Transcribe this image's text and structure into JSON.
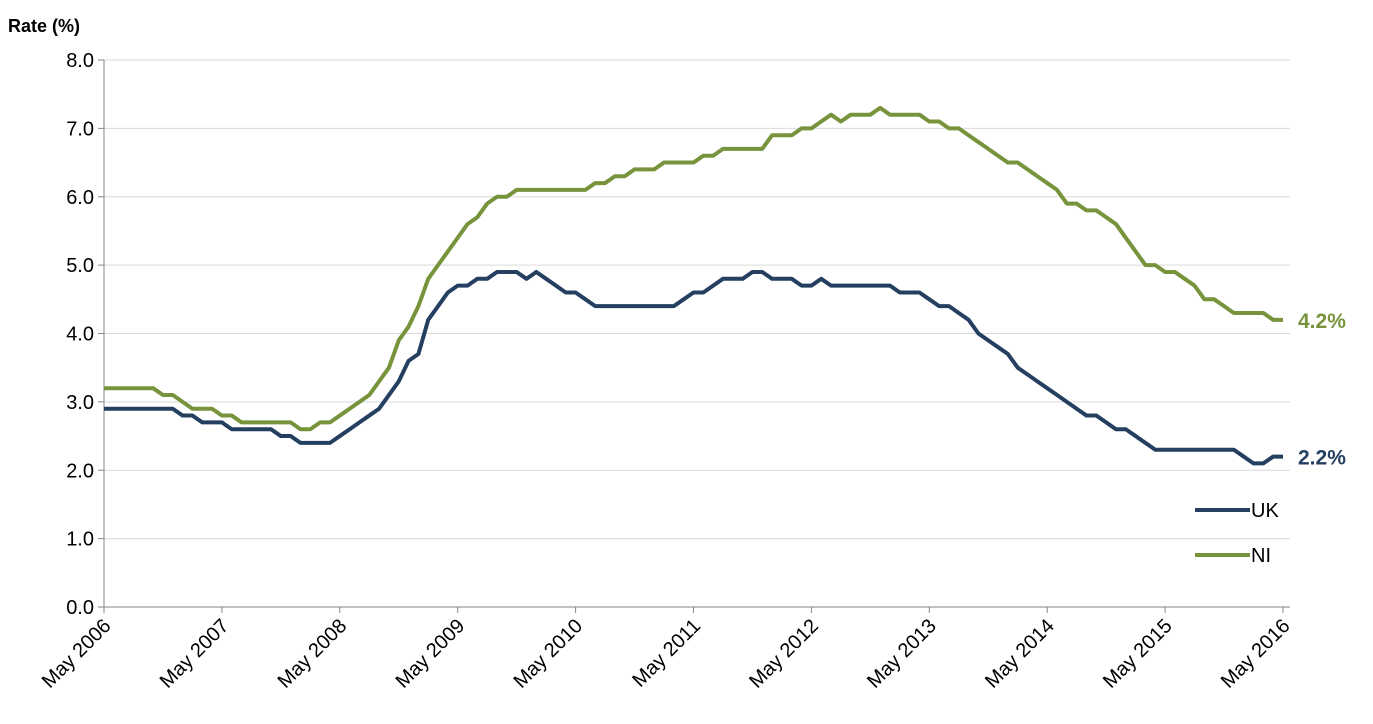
{
  "chart_data": {
    "type": "line",
    "y_label": "Rate (%)",
    "categories": [
      "May 2006",
      null,
      null,
      null,
      null,
      null,
      null,
      null,
      null,
      null,
      null,
      null,
      "May 2007",
      null,
      null,
      null,
      null,
      null,
      null,
      null,
      null,
      null,
      null,
      null,
      "May 2008",
      null,
      null,
      null,
      null,
      null,
      null,
      null,
      null,
      null,
      null,
      null,
      "May 2009",
      null,
      null,
      null,
      null,
      null,
      null,
      null,
      null,
      null,
      null,
      null,
      "May 2010",
      null,
      null,
      null,
      null,
      null,
      null,
      null,
      null,
      null,
      null,
      null,
      "May 2011",
      null,
      null,
      null,
      null,
      null,
      null,
      null,
      null,
      null,
      null,
      null,
      "May 2012",
      null,
      null,
      null,
      null,
      null,
      null,
      null,
      null,
      null,
      null,
      null,
      "May 2013",
      null,
      null,
      null,
      null,
      null,
      null,
      null,
      null,
      null,
      null,
      null,
      "May 2014",
      null,
      null,
      null,
      null,
      null,
      null,
      null,
      null,
      null,
      null,
      null,
      "May 2015",
      null,
      null,
      null,
      null,
      null,
      null,
      null,
      null,
      null,
      null,
      null,
      "May 2016"
    ],
    "series": [
      {
        "name": "UK",
        "color": "#243f60",
        "values": [
          2.9,
          2.9,
          2.9,
          2.9,
          2.9,
          2.9,
          2.9,
          2.9,
          2.8,
          2.8,
          2.7,
          2.7,
          2.7,
          2.6,
          2.6,
          2.6,
          2.6,
          2.6,
          2.5,
          2.5,
          2.4,
          2.4,
          2.4,
          2.4,
          2.5,
          2.6,
          2.7,
          2.8,
          2.9,
          3.1,
          3.3,
          3.6,
          3.7,
          4.2,
          4.4,
          4.6,
          4.7,
          4.7,
          4.8,
          4.8,
          4.9,
          4.9,
          4.9,
          4.8,
          4.9,
          4.8,
          4.7,
          4.6,
          4.6,
          4.5,
          4.4,
          4.4,
          4.4,
          4.4,
          4.4,
          4.4,
          4.4,
          4.4,
          4.4,
          4.5,
          4.6,
          4.6,
          4.7,
          4.8,
          4.8,
          4.8,
          4.9,
          4.9,
          4.8,
          4.8,
          4.8,
          4.7,
          4.7,
          4.8,
          4.7,
          4.7,
          4.7,
          4.7,
          4.7,
          4.7,
          4.7,
          4.6,
          4.6,
          4.6,
          4.5,
          4.4,
          4.4,
          4.3,
          4.2,
          4.0,
          3.9,
          3.8,
          3.7,
          3.5,
          3.4,
          3.3,
          3.2,
          3.1,
          3.0,
          2.9,
          2.8,
          2.8,
          2.7,
          2.6,
          2.6,
          2.5,
          2.4,
          2.3,
          2.3,
          2.3,
          2.3,
          2.3,
          2.3,
          2.3,
          2.3,
          2.3,
          2.2,
          2.1,
          2.1,
          2.2,
          2.2
        ],
        "value_labels": [
          null,
          null,
          null,
          null,
          null,
          null,
          null,
          null,
          null,
          null,
          null,
          null,
          null,
          null,
          null,
          null,
          null,
          null,
          null,
          null,
          null,
          null,
          null,
          null,
          null,
          null,
          null,
          null,
          null,
          null,
          null,
          null,
          null,
          null,
          null,
          null,
          null,
          null,
          null,
          null,
          null,
          null,
          null,
          null,
          null,
          null,
          null,
          null,
          null,
          null,
          null,
          null,
          null,
          null,
          null,
          null,
          null,
          null,
          null,
          null,
          null,
          null,
          null,
          null,
          null,
          null,
          null,
          null,
          null,
          null,
          null,
          null,
          null,
          null,
          null,
          null,
          null,
          null,
          null,
          null,
          null,
          null,
          null,
          null,
          null,
          null,
          null,
          null,
          null,
          null,
          null,
          null,
          null,
          null,
          null,
          null,
          null,
          null,
          null,
          null,
          null,
          null,
          null,
          null,
          null,
          null,
          null,
          null,
          null,
          null,
          null,
          null,
          null,
          null,
          null,
          null,
          null,
          null,
          null,
          null,
          "2.2%"
        ]
      },
      {
        "name": "NI",
        "color": "#77933c",
        "values": [
          3.2,
          3.2,
          3.2,
          3.2,
          3.2,
          3.2,
          3.1,
          3.1,
          3.0,
          2.9,
          2.9,
          2.9,
          2.8,
          2.8,
          2.7,
          2.7,
          2.7,
          2.7,
          2.7,
          2.7,
          2.6,
          2.6,
          2.7,
          2.7,
          2.8,
          2.9,
          3.0,
          3.1,
          3.3,
          3.5,
          3.9,
          4.1,
          4.4,
          4.8,
          5.0,
          5.2,
          5.4,
          5.6,
          5.7,
          5.9,
          6.0,
          6.0,
          6.1,
          6.1,
          6.1,
          6.1,
          6.1,
          6.1,
          6.1,
          6.1,
          6.2,
          6.2,
          6.3,
          6.3,
          6.4,
          6.4,
          6.4,
          6.5,
          6.5,
          6.5,
          6.5,
          6.6,
          6.6,
          6.7,
          6.7,
          6.7,
          6.7,
          6.7,
          6.9,
          6.9,
          6.9,
          7.0,
          7.0,
          7.1,
          7.2,
          7.1,
          7.2,
          7.2,
          7.2,
          7.3,
          7.2,
          7.2,
          7.2,
          7.2,
          7.1,
          7.1,
          7.0,
          7.0,
          6.9,
          6.8,
          6.7,
          6.6,
          6.5,
          6.5,
          6.4,
          6.3,
          6.2,
          6.1,
          5.9,
          5.9,
          5.8,
          5.8,
          5.7,
          5.6,
          5.4,
          5.2,
          5.0,
          5.0,
          4.9,
          4.9,
          4.8,
          4.7,
          4.5,
          4.5,
          4.4,
          4.3,
          4.3,
          4.3,
          4.3,
          4.2,
          4.2
        ],
        "value_labels": [
          null,
          null,
          null,
          null,
          null,
          null,
          null,
          null,
          null,
          null,
          null,
          null,
          null,
          null,
          null,
          null,
          null,
          null,
          null,
          null,
          null,
          null,
          null,
          null,
          null,
          null,
          null,
          null,
          null,
          null,
          null,
          null,
          null,
          null,
          null,
          null,
          null,
          null,
          null,
          null,
          null,
          null,
          null,
          null,
          null,
          null,
          null,
          null,
          null,
          null,
          null,
          null,
          null,
          null,
          null,
          null,
          null,
          null,
          null,
          null,
          null,
          null,
          null,
          null,
          null,
          null,
          null,
          null,
          null,
          null,
          null,
          null,
          null,
          null,
          null,
          null,
          null,
          null,
          null,
          null,
          null,
          null,
          null,
          null,
          null,
          null,
          null,
          null,
          null,
          null,
          null,
          null,
          null,
          null,
          null,
          null,
          null,
          null,
          null,
          null,
          null,
          null,
          null,
          null,
          null,
          null,
          null,
          null,
          null,
          null,
          null,
          null,
          null,
          null,
          null,
          null,
          null,
          null,
          null,
          null,
          "4.2%"
        ]
      }
    ],
    "ylim": [
      0,
      8
    ],
    "yticks": [
      {
        "value": 0,
        "label": "0.0"
      },
      {
        "value": 1,
        "label": "1.0"
      },
      {
        "value": 2,
        "label": "2.0"
      },
      {
        "value": 3,
        "label": "3.0"
      },
      {
        "value": 4,
        "label": "4.0"
      },
      {
        "value": 5,
        "label": "5.0"
      },
      {
        "value": 6,
        "label": "6.0"
      },
      {
        "value": 7,
        "label": "7.0"
      },
      {
        "value": 8,
        "label": "8.0"
      }
    ],
    "grid": true,
    "legend": "lower right"
  }
}
